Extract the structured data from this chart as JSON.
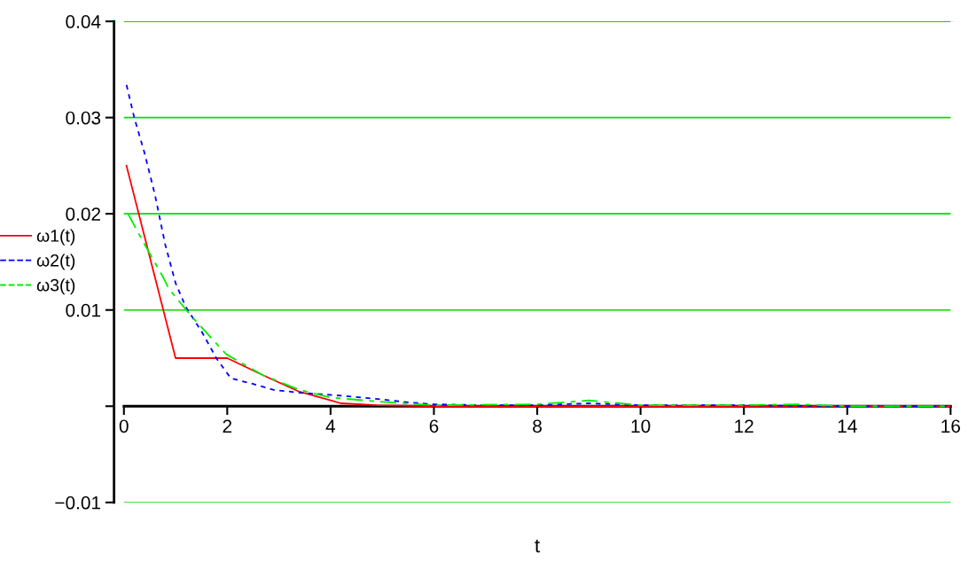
{
  "chart_data": {
    "type": "line",
    "xlabel": "t",
    "xlim": [
      0,
      16
    ],
    "xticks": [
      0,
      2,
      4,
      6,
      8,
      10,
      12,
      14,
      16
    ],
    "ylim": [
      -0.01,
      0.04
    ],
    "yticks": [
      {
        "value": -0.01,
        "label": "−0.01"
      },
      {
        "value": 0,
        "label": null
      },
      0.01,
      0.02,
      0.03,
      0.04
    ],
    "grid": "y",
    "legend": "left",
    "marker": "none",
    "series": [
      {
        "name": "ω1(t)",
        "color": "#ff0000",
        "line_style": "solid",
        "x": [
          0.05,
          1.0,
          2.0,
          2.7,
          3.4,
          4.0,
          4.2,
          4.9,
          6,
          8,
          10,
          12,
          14,
          16
        ],
        "values": [
          0.025,
          0.005,
          0.005,
          0.0032,
          0.0015,
          0.0006,
          0.0003,
          0.0001,
          0,
          0,
          0,
          0,
          0,
          0
        ]
      },
      {
        "name": "ω2(t)",
        "color": "#0000ff",
        "line_style": "dotted",
        "x": [
          0.05,
          0.2,
          0.4,
          0.6,
          0.8,
          1.0,
          1.2,
          1.5,
          1.8,
          2.07,
          2.44,
          2.9,
          3.4,
          4.2,
          5.0,
          5.5,
          6,
          7,
          8,
          9,
          10,
          12,
          14,
          16
        ],
        "values": [
          0.0334,
          0.03,
          0.0263,
          0.022,
          0.0168,
          0.0128,
          0.0103,
          0.0078,
          0.0049,
          0.0029,
          0.0024,
          0.0017,
          0.0014,
          0.0011,
          0.0007,
          0.0004,
          0.0002,
          0.0001,
          0.0001,
          0.0003,
          0.0001,
          0.0001,
          0,
          0
        ]
      },
      {
        "name": "ω3(t)",
        "color": "#00ee00",
        "line_style": "dashed",
        "x": [
          0.08,
          0.36,
          0.76,
          0.87,
          1.3,
          1.98,
          2.7,
          3.4,
          4.0,
          4.9,
          6,
          8,
          9,
          10,
          12,
          13,
          14,
          16
        ],
        "values": [
          0.02,
          0.0172,
          0.0134,
          0.0122,
          0.0094,
          0.0054,
          0.0032,
          0.0017,
          0.0009,
          0.0005,
          0.0001,
          0.0002,
          0.0006,
          0.0001,
          0.0001,
          0.0002,
          0,
          0
        ]
      }
    ]
  }
}
